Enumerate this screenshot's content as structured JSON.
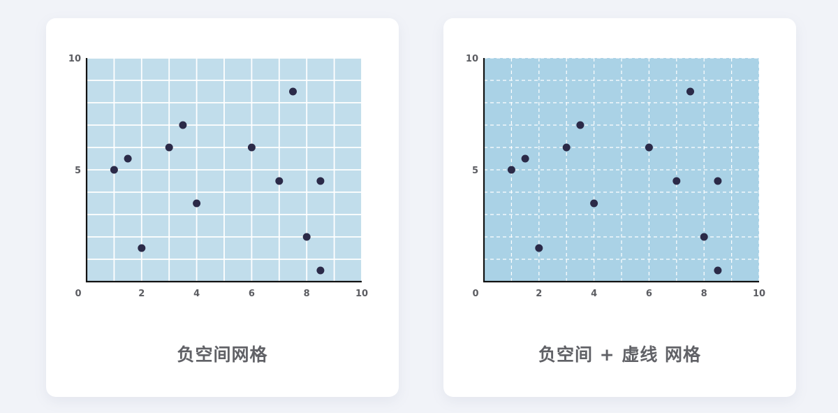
{
  "colors": {
    "background": "#f1f3f8",
    "card": "#ffffff",
    "plot_fill_solid_grid": "#c1ddeb",
    "plot_fill_dashed_grid": "#aad2e6",
    "grid_line": "#ffffff",
    "axis": "#111111",
    "point": "#2b2a48",
    "caption": "#606166"
  },
  "chart_data": [
    {
      "type": "scatter",
      "title": "负空间网格",
      "grid": "solid",
      "xlim": [
        0,
        10
      ],
      "ylim": [
        0,
        10
      ],
      "x_ticks": [
        0,
        2,
        4,
        6,
        8,
        10
      ],
      "y_ticks": [
        5,
        10
      ],
      "points": [
        {
          "x": 1,
          "y": 5
        },
        {
          "x": 1.5,
          "y": 5.5
        },
        {
          "x": 2,
          "y": 1.5
        },
        {
          "x": 3,
          "y": 6
        },
        {
          "x": 3.5,
          "y": 7
        },
        {
          "x": 4,
          "y": 3.5
        },
        {
          "x": 6,
          "y": 6
        },
        {
          "x": 7,
          "y": 4.5
        },
        {
          "x": 7.5,
          "y": 8.5
        },
        {
          "x": 8,
          "y": 2
        },
        {
          "x": 8.5,
          "y": 4.5
        },
        {
          "x": 8.5,
          "y": 0.5
        }
      ]
    },
    {
      "type": "scatter",
      "title": "负空间 + 虚线 网格",
      "grid": "dashed",
      "xlim": [
        0,
        10
      ],
      "ylim": [
        0,
        10
      ],
      "x_ticks": [
        0,
        2,
        4,
        6,
        8,
        10
      ],
      "y_ticks": [
        5,
        10
      ],
      "points": [
        {
          "x": 1,
          "y": 5
        },
        {
          "x": 1.5,
          "y": 5.5
        },
        {
          "x": 2,
          "y": 1.5
        },
        {
          "x": 3,
          "y": 6
        },
        {
          "x": 3.5,
          "y": 7
        },
        {
          "x": 4,
          "y": 3.5
        },
        {
          "x": 6,
          "y": 6
        },
        {
          "x": 7,
          "y": 4.5
        },
        {
          "x": 7.5,
          "y": 8.5
        },
        {
          "x": 8,
          "y": 2
        },
        {
          "x": 8.5,
          "y": 4.5
        },
        {
          "x": 8.5,
          "y": 0.5
        }
      ]
    }
  ]
}
